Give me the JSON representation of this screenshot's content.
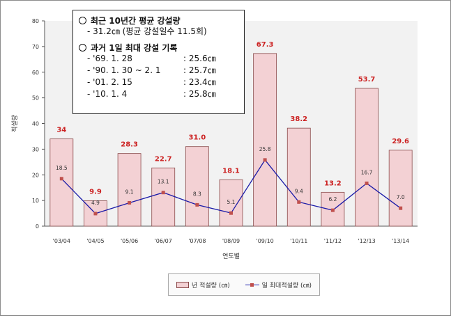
{
  "chart_data": {
    "type": "bar",
    "categories": [
      "'03/04",
      "'04/05",
      "'05/06",
      "'06/07",
      "'07/08",
      "'08/09",
      "'09/10",
      "'10/11",
      "'11/12",
      "'12/13",
      "'13/14"
    ],
    "series": [
      {
        "name": "년 적설량 (㎝)",
        "type": "bar",
        "values": [
          34,
          9.9,
          28.3,
          22.7,
          31.0,
          18.1,
          67.3,
          38.2,
          13.2,
          53.7,
          29.6
        ],
        "labels": [
          "34",
          "9.9",
          "28.3",
          "22.7",
          "31.0",
          "18.1",
          "67.3",
          "38.2",
          "13.2",
          "53.7",
          "29.6"
        ]
      },
      {
        "name": "일 최대적설량 (㎝)",
        "type": "line",
        "values": [
          18.5,
          4.9,
          9.1,
          13.1,
          8.3,
          5.1,
          25.8,
          9.4,
          6.2,
          16.7,
          7.0
        ],
        "labels": [
          "18.5",
          "4.9",
          "9.1",
          "13.1",
          "8.3",
          "5.1",
          "25.8",
          "9.4",
          "6.2",
          "16.7",
          "7.0"
        ]
      }
    ],
    "xlabel": "연도별",
    "ylabel": "적설량",
    "ylim": [
      0,
      80
    ],
    "yticks": [
      "0",
      "10",
      "20",
      "30",
      "40",
      "50",
      "60",
      "70",
      "80"
    ],
    "grid": false,
    "legend_position": "bottom"
  },
  "colors": {
    "bar_fill": "#f3d1d4",
    "bar_stroke": "#8a4a4a",
    "bar_label": "#cc2222",
    "line": "#1a1aa8",
    "marker": "#c0504d",
    "plot_bg": "#f2f2f2"
  },
  "note": {
    "section1_title": "최근 10년간 평균 강설량",
    "section1_line": "- 31.2㎝ (평균 강설일수 11.5회)",
    "section2_title": "과거 1일 최대 강설 기록",
    "records": [
      {
        "date": "- '69. 1. 28",
        "value": ": 25.6㎝"
      },
      {
        "date": "- '90. 1. 30 ~ 2. 1",
        "value": ": 25.7㎝"
      },
      {
        "date": "- '01. 2. 15",
        "value": ": 23.4㎝"
      },
      {
        "date": "- '10. 1.  4",
        "value": ": 25.8㎝"
      }
    ]
  }
}
